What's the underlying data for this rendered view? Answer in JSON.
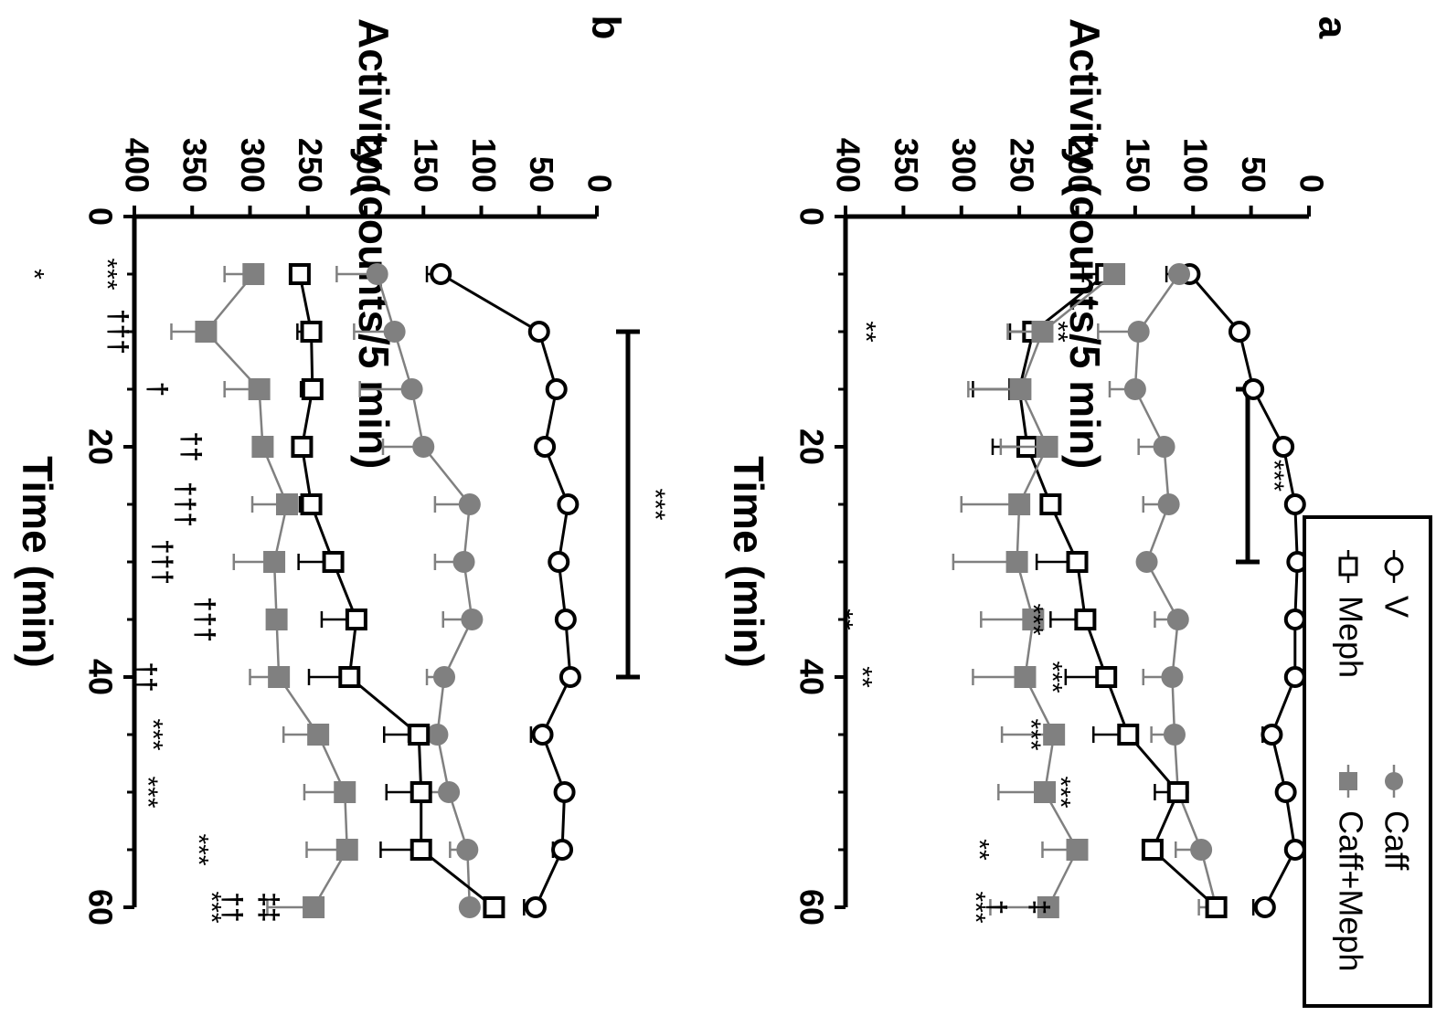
{
  "legend": {
    "items": [
      {
        "label": "V",
        "marker": "circle-open",
        "color": "#000000"
      },
      {
        "label": "Caff",
        "marker": "circle-filled",
        "color": "#808080"
      },
      {
        "label": "Meph",
        "marker": "square-open",
        "color": "#000000"
      },
      {
        "label": "Caff+Meph",
        "marker": "square-filled",
        "color": "#808080"
      }
    ]
  },
  "colors": {
    "black": "#000000",
    "gray": "#808080",
    "background": "#ffffff"
  },
  "chart_data": [
    {
      "panel": "a",
      "type": "line",
      "ylabel": "Activity (counts/5 min)",
      "xlabel": "Time (min)",
      "xlim": [
        0,
        60
      ],
      "ylim": [
        0,
        400
      ],
      "x_ticks": [
        "0",
        "20",
        "40",
        "60"
      ],
      "y_ticks": [
        "0",
        "50",
        "100",
        "150",
        "200",
        "250",
        "300",
        "350",
        "400"
      ],
      "orientation": "rotated 90° clockwise",
      "x": [
        5,
        10,
        15,
        20,
        25,
        30,
        35,
        40,
        45,
        50,
        55,
        60
      ],
      "series": [
        {
          "name": "V",
          "marker": "circle-open",
          "color": "#000000",
          "values": [
            103,
            60,
            48,
            22,
            12,
            10,
            12,
            12,
            32,
            20,
            12,
            38
          ],
          "errors": [
            20,
            0,
            6,
            0,
            0,
            0,
            0,
            0,
            8,
            6,
            0,
            10
          ]
        },
        {
          "name": "Caff",
          "marker": "circle-filled",
          "color": "#808080",
          "values": [
            112,
            147,
            150,
            125,
            121,
            140,
            113,
            118,
            116,
            113,
            93,
            80
          ],
          "errors": [
            0,
            35,
            22,
            22,
            22,
            0,
            20,
            25,
            20,
            0,
            22,
            15
          ]
        },
        {
          "name": "Meph",
          "marker": "square-open",
          "color": "#000000",
          "values": [
            175,
            238,
            250,
            243,
            223,
            200,
            193,
            175,
            156,
            113,
            135,
            80
          ],
          "errors": [
            20,
            20,
            40,
            30,
            0,
            35,
            30,
            35,
            30,
            20,
            0,
            0
          ]
        },
        {
          "name": "Caff+Meph",
          "marker": "square-filled",
          "color": "#808080",
          "values": [
            168,
            230,
            249,
            226,
            250,
            252,
            238,
            245,
            220,
            228,
            200,
            225
          ],
          "errors": [
            0,
            30,
            45,
            40,
            50,
            55,
            45,
            45,
            45,
            40,
            30,
            50
          ]
        }
      ],
      "bracket": {
        "x_start": 15,
        "x_end": 30,
        "label": "***"
      },
      "annotations": [
        {
          "x": 10,
          "label": "**"
        },
        {
          "x": 10,
          "label": "**"
        },
        {
          "x": 35,
          "label": "**"
        },
        {
          "x": 35,
          "label": "***"
        },
        {
          "x": 40,
          "label": "**"
        },
        {
          "x": 40,
          "label": "***"
        },
        {
          "x": 45,
          "label": "***"
        },
        {
          "x": 50,
          "label": "***"
        },
        {
          "x": 55,
          "label": "**"
        },
        {
          "x": 60,
          "label": "***"
        },
        {
          "x": 60,
          "label": "†"
        },
        {
          "x": 60,
          "label": "‡"
        }
      ]
    },
    {
      "panel": "b",
      "type": "line",
      "ylabel": "Activity (counts/5 min)",
      "xlabel": "Time (min)",
      "xlim": [
        0,
        60
      ],
      "ylim": [
        0,
        400
      ],
      "x_ticks": [
        "0",
        "20",
        "40",
        "60"
      ],
      "y_ticks": [
        "0",
        "50",
        "100",
        "150",
        "200",
        "250",
        "300",
        "350",
        "400"
      ],
      "orientation": "rotated 90° clockwise",
      "x": [
        5,
        10,
        15,
        20,
        25,
        30,
        35,
        40,
        45,
        50,
        55,
        60
      ],
      "series": [
        {
          "name": "V",
          "marker": "circle-open",
          "color": "#000000",
          "values": [
            135,
            50,
            35,
            45,
            25,
            33,
            27,
            23,
            47,
            28,
            30,
            53
          ],
          "errors": [
            12,
            0,
            0,
            6,
            0,
            0,
            0,
            0,
            10,
            0,
            8,
            10
          ]
        },
        {
          "name": "Caff",
          "marker": "circle-filled",
          "color": "#808080",
          "values": [
            190,
            175,
            160,
            150,
            110,
            115,
            108,
            132,
            138,
            128,
            112,
            110
          ],
          "errors": [
            35,
            35,
            45,
            35,
            30,
            25,
            25,
            15,
            25,
            25,
            15,
            0
          ]
        },
        {
          "name": "Meph",
          "marker": "square-open",
          "color": "#000000",
          "values": [
            257,
            247,
            246,
            255,
            247,
            228,
            208,
            214,
            154,
            152,
            152,
            89
          ],
          "errors": [
            0,
            12,
            10,
            0,
            10,
            30,
            30,
            35,
            30,
            30,
            35,
            0
          ]
        },
        {
          "name": "Caff+Meph",
          "marker": "square-filled",
          "color": "#808080",
          "values": [
            297,
            338,
            292,
            289,
            268,
            279,
            277,
            275,
            241,
            218,
            216,
            245
          ],
          "errors": [
            25,
            30,
            30,
            0,
            30,
            35,
            0,
            25,
            30,
            35,
            35,
            40
          ]
        }
      ],
      "bracket": {
        "x_start": 10,
        "x_end": 40,
        "label": "***"
      },
      "annotations": [
        {
          "x": 5,
          "label": "*"
        },
        {
          "x": 5,
          "label": "***"
        },
        {
          "x": 10,
          "label": "†††"
        },
        {
          "x": 15,
          "label": "†"
        },
        {
          "x": 20,
          "label": "††"
        },
        {
          "x": 25,
          "label": "†††"
        },
        {
          "x": 30,
          "label": "†††"
        },
        {
          "x": 35,
          "label": "†††"
        },
        {
          "x": 40,
          "label": "††"
        },
        {
          "x": 45,
          "label": "***"
        },
        {
          "x": 50,
          "label": "***"
        },
        {
          "x": 55,
          "label": "***"
        },
        {
          "x": 60,
          "label": "***"
        },
        {
          "x": 60,
          "label": "††"
        },
        {
          "x": 60,
          "label": "‡‡"
        }
      ]
    }
  ]
}
